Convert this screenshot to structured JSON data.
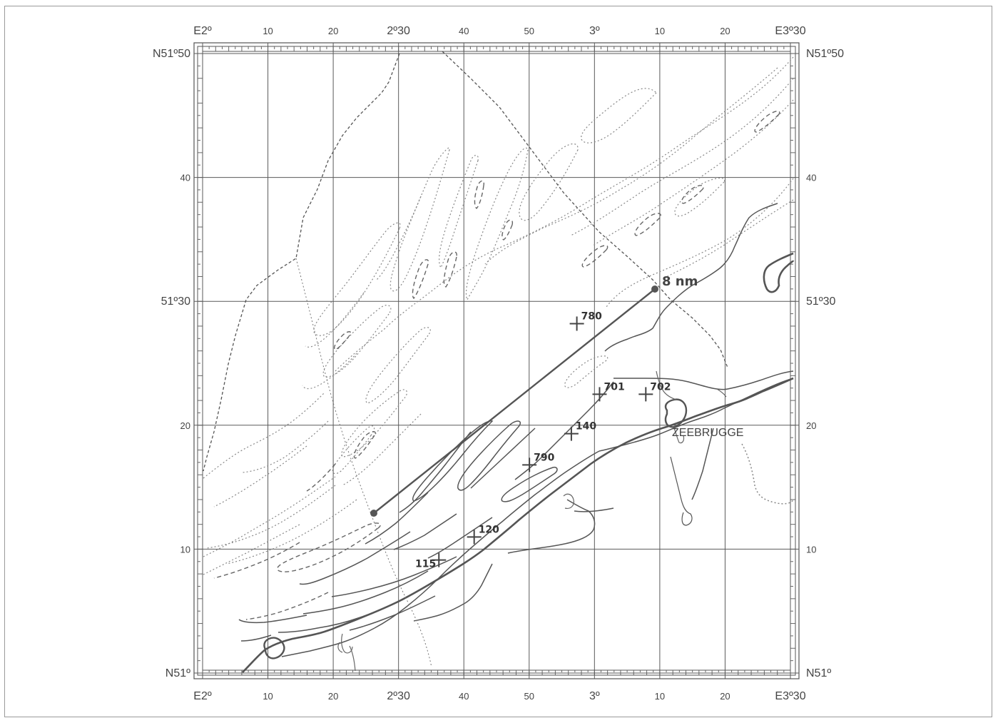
{
  "map": {
    "lon_labels_top": [
      "E2º",
      "10",
      "20",
      "2º30",
      "40",
      "50",
      "3º",
      "10",
      "20",
      "E3º30"
    ],
    "lon_labels_bottom": [
      "E2º",
      "10",
      "20",
      "2º30",
      "40",
      "50",
      "3º",
      "10",
      "20",
      "E3º30"
    ],
    "lat_labels_left": [
      "N51º50",
      "40",
      "51º30",
      "20",
      "10",
      "N51º"
    ],
    "lat_labels_right": [
      "N51º50",
      "40",
      "51º30",
      "20",
      "10",
      "N51º"
    ],
    "distance_label": "8 nm",
    "place_label": "ZEEBRUGGE",
    "stations": [
      {
        "id": "780",
        "lon": 2.955,
        "lat": 51.47
      },
      {
        "id": "701",
        "lon": 3.013,
        "lat": 51.375
      },
      {
        "id": "702",
        "lon": 3.131,
        "lat": 51.375
      },
      {
        "id": "140",
        "lon": 2.941,
        "lat": 51.322
      },
      {
        "id": "790",
        "lon": 2.834,
        "lat": 51.28
      },
      {
        "id": "120",
        "lon": 2.693,
        "lat": 51.183
      },
      {
        "id": "115",
        "lon": 2.603,
        "lat": 51.152
      }
    ],
    "colors": {
      "grid": "#5a5a5a",
      "contour": "#777777",
      "coast": "#555555",
      "route": "#555555"
    }
  }
}
